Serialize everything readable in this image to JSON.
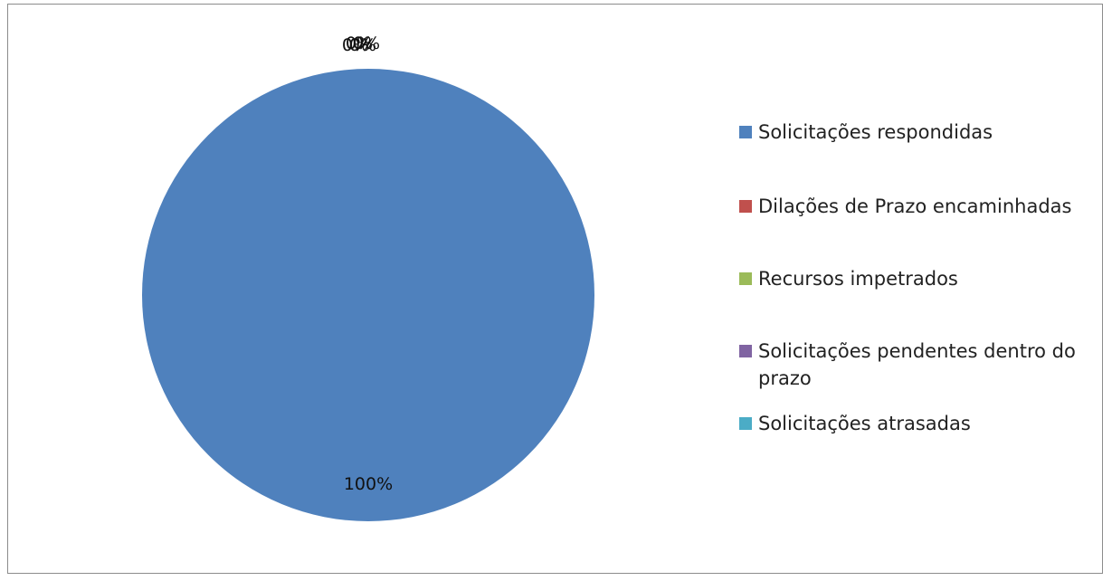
{
  "chart_data": {
    "type": "pie",
    "slices": [
      {
        "name": "Solicitações respondidas",
        "value": 100,
        "label": "100%",
        "color": "#4f81bd"
      },
      {
        "name": "Dilações de Prazo encaminhadas",
        "value": 0,
        "label": "0%",
        "color": "#c0504d"
      },
      {
        "name": "Recursos impetrados",
        "value": 0,
        "label": "0%",
        "color": "#9bbb59"
      },
      {
        "name": "Solicitações pendentes dentro do prazo",
        "value": 0,
        "label": "0%",
        "color": "#8064a2"
      },
      {
        "name": "Solicitações atrasadas",
        "value": 0,
        "label": "0%",
        "color": "#4bacc6"
      }
    ],
    "legend_position": "right"
  }
}
